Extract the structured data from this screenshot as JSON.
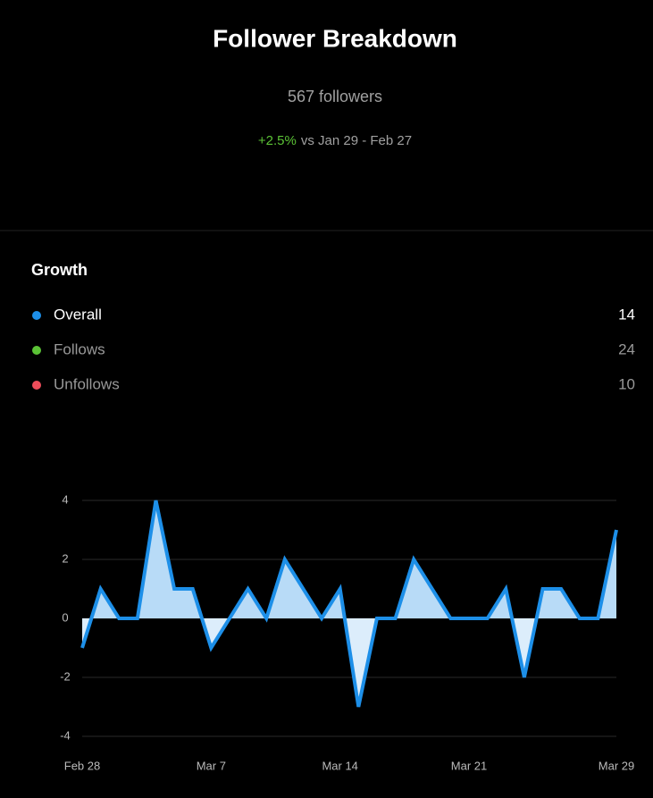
{
  "header": {
    "title": "Follower Breakdown",
    "subtitle": "567 followers",
    "change": "+2.5%",
    "change_color": "#5bc236",
    "comparison": "vs Jan 29 - Feb 27"
  },
  "growth": {
    "title": "Growth",
    "items": [
      {
        "name": "Overall",
        "color": "#1d8fe8",
        "value": 14
      },
      {
        "name": "Follows",
        "color": "#5bc236",
        "value": 24
      },
      {
        "name": "Unfollows",
        "color": "#ee4d5a",
        "value": 10
      }
    ]
  },
  "chart_data": {
    "type": "area",
    "categories": [
      "Feb 28",
      null,
      null,
      null,
      null,
      null,
      null,
      "Mar 7",
      null,
      null,
      null,
      null,
      null,
      null,
      "Mar 14",
      null,
      null,
      null,
      null,
      null,
      null,
      "Mar 21",
      null,
      null,
      null,
      null,
      null,
      null,
      null,
      "Mar 29"
    ],
    "values": [
      -1,
      1,
      0,
      0,
      4,
      1,
      1,
      -1,
      0,
      1,
      0,
      2,
      1,
      0,
      1,
      -3,
      0,
      0,
      2,
      1,
      0,
      0,
      0,
      1,
      -2,
      1,
      1,
      0,
      0,
      3
    ],
    "color": "#1d8fe8",
    "fill_positive": "#b8dbf7",
    "fill_negative": "#dcedfb",
    "ylim": [
      -4,
      4
    ],
    "yticks": [
      -4,
      -2,
      0,
      2,
      4
    ],
    "grid": true
  }
}
